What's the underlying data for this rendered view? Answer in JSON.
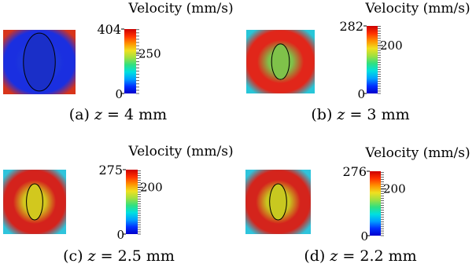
{
  "panels": [
    {
      "id": "a",
      "colorbar": {
        "title": "Velocity (mm/s)",
        "max_label": "404",
        "mid_label": "250",
        "min_label": "0",
        "max_value": 404,
        "mid_value": 250
      },
      "caption": {
        "prefix": "(a)",
        "var": "z",
        "rest": " = 4 mm"
      },
      "core_color": "#1f3fd8",
      "mid_color": "#1a2fe0",
      "edge_color": "#d8341a"
    },
    {
      "id": "b",
      "colorbar": {
        "title": "Velocity (mm/s)",
        "max_label": "282",
        "mid_label": "200",
        "min_label": "0",
        "max_value": 282,
        "mid_value": 200
      },
      "caption": {
        "prefix": "(b)",
        "var": "z",
        "rest": " = 3 mm"
      },
      "core_color": "#7fc24a",
      "mid_color": "#e1261a",
      "edge_color": "#27c6d8"
    },
    {
      "id": "c",
      "colorbar": {
        "title": "Velocity (mm/s)",
        "max_label": "275",
        "mid_label": "200",
        "min_label": "0",
        "max_value": 275,
        "mid_value": 200
      },
      "caption": {
        "prefix": "(c)",
        "var": "z",
        "rest": " = 2.5 mm"
      },
      "core_color": "#d2c81e",
      "mid_color": "#d4221c",
      "edge_color": "#2ec4dc"
    },
    {
      "id": "d",
      "colorbar": {
        "title": "Velocity (mm/s)",
        "max_label": "276",
        "mid_label": "200",
        "min_label": "0",
        "max_value": 276,
        "mid_value": 200
      },
      "caption": {
        "prefix": "(d)",
        "var": "z",
        "rest": " = 2.2 mm"
      },
      "core_color": "#c8c820",
      "mid_color": "#d4241c",
      "edge_color": "#2ec4dc"
    }
  ],
  "colormap": [
    "#0000cc",
    "#0030ff",
    "#00a0ff",
    "#00e0e0",
    "#30e080",
    "#a0e040",
    "#f0e020",
    "#ff9000",
    "#ff3000",
    "#cc0000"
  ]
}
